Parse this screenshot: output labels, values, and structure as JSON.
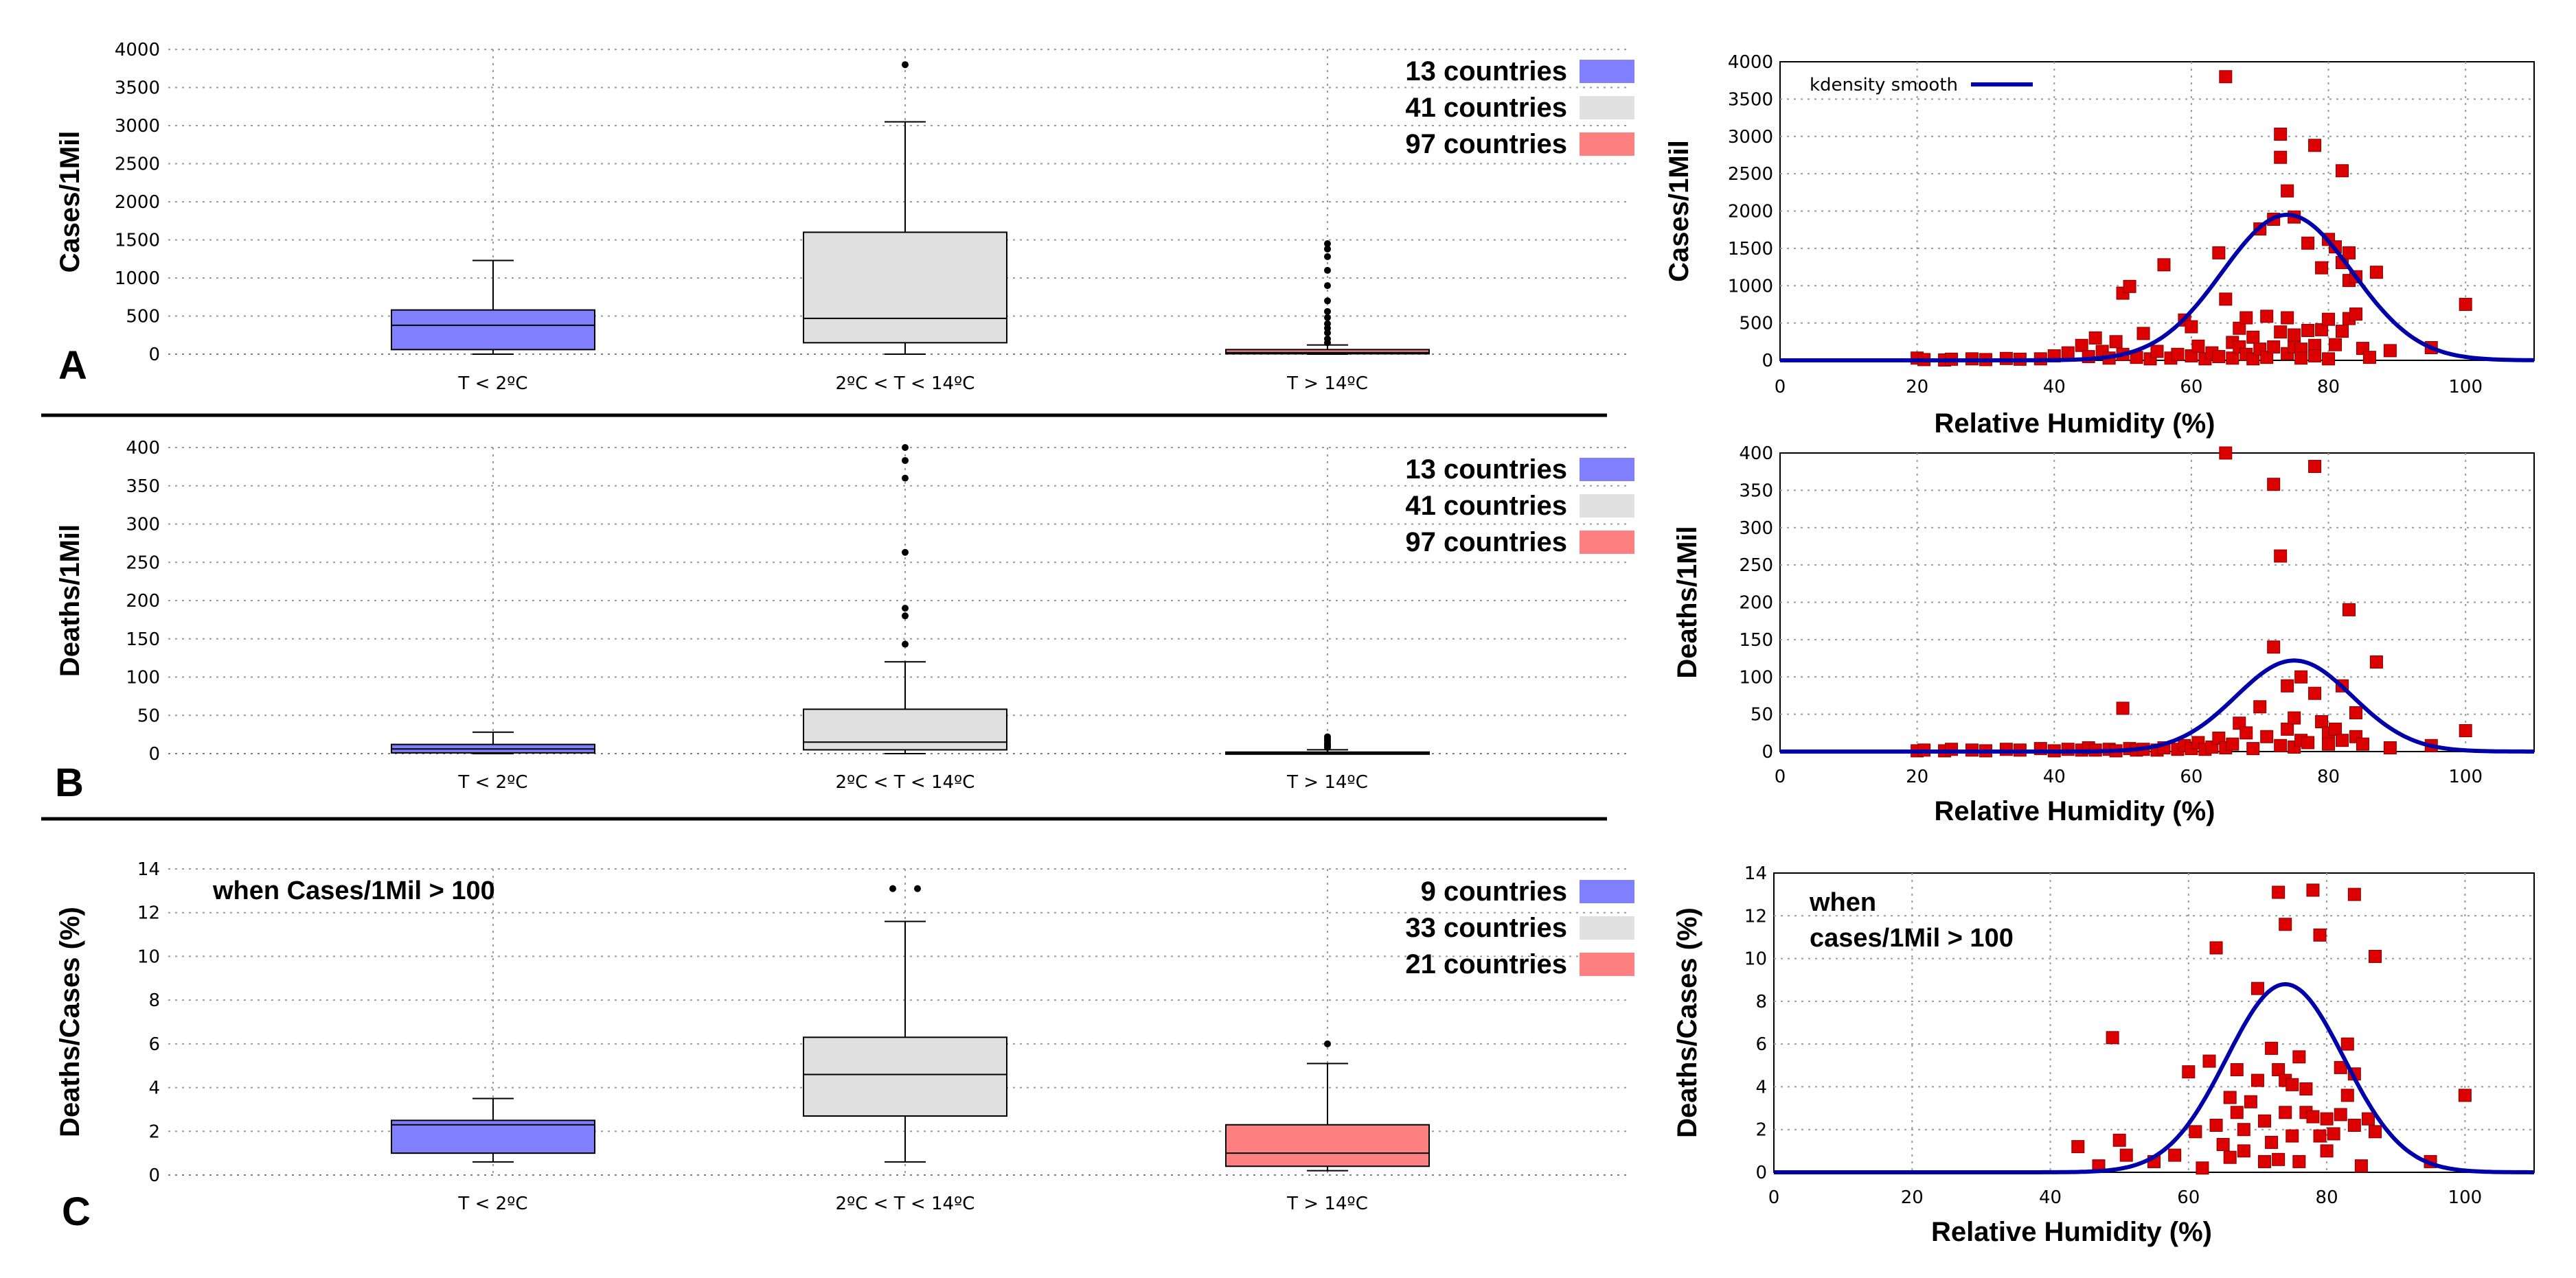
{
  "panel_labels": [
    "A",
    "B",
    "C"
  ],
  "colors": {
    "cold": "#8080ff",
    "mid": "#e0e0e0",
    "warm": "#ff8080",
    "scatter": "#dd0000",
    "kdensity": "#0000aa"
  },
  "chart_data": [
    {
      "type": "box",
      "panel": "A",
      "ylabel": "Cases/1Mil",
      "xlabel": "",
      "ylim": [
        0,
        4000
      ],
      "yticks": [
        0,
        500,
        1000,
        1500,
        2000,
        2500,
        3000,
        3500,
        4000
      ],
      "categories": [
        "T < 2ºC",
        "2ºC < T < 14ºC",
        "T > 14ºC"
      ],
      "legend": [
        "13 countries",
        "41 countries",
        "97 countries"
      ],
      "boxes": [
        {
          "whisker_low": 0,
          "q1": 60,
          "median": 380,
          "q3": 580,
          "whisker_high": 1230,
          "outliers": []
        },
        {
          "whisker_low": 0,
          "q1": 150,
          "median": 470,
          "q3": 1600,
          "whisker_high": 3050,
          "outliers": [
            3800
          ]
        },
        {
          "whisker_low": 0,
          "q1": 5,
          "median": 20,
          "q3": 60,
          "whisker_high": 120,
          "outliers": [
            150,
            200,
            280,
            340,
            400,
            480,
            560,
            700,
            900,
            1100,
            1280,
            1380,
            1450
          ]
        }
      ]
    },
    {
      "type": "box",
      "panel": "B",
      "ylabel": "Deaths/1Mil",
      "xlabel": "",
      "ylim": [
        0,
        400
      ],
      "yticks": [
        0,
        50,
        100,
        150,
        200,
        250,
        300,
        350,
        400
      ],
      "categories": [
        "T < 2ºC",
        "2ºC < T < 14ºC",
        "T > 14ºC"
      ],
      "legend": [
        "13 countries",
        "41 countries",
        "97 countries"
      ],
      "boxes": [
        {
          "whisker_low": 0,
          "q1": 1,
          "median": 6,
          "q3": 12,
          "whisker_high": 28,
          "outliers": []
        },
        {
          "whisker_low": 0,
          "q1": 5,
          "median": 15,
          "q3": 58,
          "whisker_high": 120,
          "outliers": [
            143,
            180,
            190,
            263,
            360,
            383,
            400
          ]
        },
        {
          "whisker_low": 0,
          "q1": 0,
          "median": 1,
          "q3": 2,
          "whisker_high": 5,
          "outliers": [
            8,
            10,
            12,
            14,
            17,
            19,
            22
          ]
        }
      ]
    },
    {
      "type": "box",
      "panel": "C",
      "ylabel": "Deaths/Cases (%)",
      "xlabel": "",
      "ylim": [
        0,
        14
      ],
      "yticks": [
        0,
        2,
        4,
        6,
        8,
        10,
        12,
        14
      ],
      "categories": [
        "T < 2ºC",
        "2ºC < T < 14ºC",
        "T > 14ºC"
      ],
      "legend": [
        "9 countries",
        "33 countries",
        "21 countries"
      ],
      "note": "when Cases/1Mil > 100",
      "boxes": [
        {
          "whisker_low": 0.6,
          "q1": 1.0,
          "median": 2.3,
          "q3": 2.5,
          "whisker_high": 3.5,
          "outliers": []
        },
        {
          "whisker_low": 0.6,
          "q1": 2.7,
          "median": 4.6,
          "q3": 6.3,
          "whisker_high": 11.6,
          "outliers": [
            13.1,
            13.1
          ]
        },
        {
          "whisker_low": 0.2,
          "q1": 0.4,
          "median": 1.0,
          "q3": 2.3,
          "whisker_high": 5.1,
          "outliers": [
            6.0
          ]
        }
      ]
    },
    {
      "type": "scatter",
      "panel": "A-right",
      "ylabel": "Cases/1Mil",
      "xlabel": "Relative Humidity (%)",
      "xlim": [
        0,
        110
      ],
      "ylim": [
        0,
        4000
      ],
      "xticks": [
        0,
        20,
        40,
        60,
        80,
        100
      ],
      "yticks": [
        0,
        500,
        1000,
        1500,
        2000,
        2500,
        3000,
        3500,
        4000
      ],
      "legend": [
        "kdensity smooth"
      ],
      "curve": {
        "peak_x": 74,
        "peak_y": 1950,
        "sigma": 9.5
      },
      "points": [
        [
          20,
          30
        ],
        [
          21,
          10
        ],
        [
          24,
          5
        ],
        [
          25,
          15
        ],
        [
          28,
          20
        ],
        [
          30,
          10
        ],
        [
          33,
          25
        ],
        [
          35,
          15
        ],
        [
          38,
          20
        ],
        [
          40,
          60
        ],
        [
          42,
          100
        ],
        [
          44,
          200
        ],
        [
          45,
          50
        ],
        [
          46,
          300
        ],
        [
          47,
          120
        ],
        [
          48,
          30
        ],
        [
          49,
          250
        ],
        [
          50,
          80
        ],
        [
          50,
          900
        ],
        [
          51,
          990
        ],
        [
          52,
          40
        ],
        [
          53,
          360
        ],
        [
          54,
          20
        ],
        [
          55,
          120
        ],
        [
          56,
          1280
        ],
        [
          57,
          30
        ],
        [
          58,
          80
        ],
        [
          59,
          540
        ],
        [
          60,
          450
        ],
        [
          60,
          60
        ],
        [
          61,
          190
        ],
        [
          62,
          20
        ],
        [
          63,
          100
        ],
        [
          64,
          1440
        ],
        [
          64,
          50
        ],
        [
          65,
          3800
        ],
        [
          65,
          820
        ],
        [
          66,
          240
        ],
        [
          66,
          30
        ],
        [
          67,
          180
        ],
        [
          67,
          430
        ],
        [
          68,
          570
        ],
        [
          68,
          80
        ],
        [
          69,
          310
        ],
        [
          69,
          20
        ],
        [
          70,
          150
        ],
        [
          70,
          1760
        ],
        [
          71,
          590
        ],
        [
          71,
          40
        ],
        [
          72,
          180
        ],
        [
          72,
          1890
        ],
        [
          73,
          3030
        ],
        [
          73,
          2720
        ],
        [
          73,
          380
        ],
        [
          74,
          2270
        ],
        [
          74,
          570
        ],
        [
          74,
          90
        ],
        [
          75,
          1920
        ],
        [
          75,
          180
        ],
        [
          75,
          340
        ],
        [
          76,
          150
        ],
        [
          76,
          30
        ],
        [
          77,
          1570
        ],
        [
          77,
          400
        ],
        [
          78,
          2880
        ],
        [
          78,
          200
        ],
        [
          78,
          60
        ],
        [
          79,
          1240
        ],
        [
          79,
          410
        ],
        [
          80,
          1620
        ],
        [
          80,
          550
        ],
        [
          80,
          20
        ],
        [
          81,
          1520
        ],
        [
          81,
          210
        ],
        [
          82,
          2540
        ],
        [
          82,
          1310
        ],
        [
          82,
          390
        ],
        [
          83,
          1440
        ],
        [
          83,
          1070
        ],
        [
          83,
          560
        ],
        [
          84,
          1120
        ],
        [
          84,
          620
        ],
        [
          85,
          160
        ],
        [
          86,
          40
        ],
        [
          87,
          1180
        ],
        [
          89,
          130
        ],
        [
          95,
          170
        ],
        [
          100,
          750
        ]
      ]
    },
    {
      "type": "scatter",
      "panel": "B-right",
      "ylabel": "Deaths/1Mil",
      "xlabel": "Relative Humidity (%)",
      "xlim": [
        0,
        110
      ],
      "ylim": [
        0,
        400
      ],
      "xticks": [
        0,
        20,
        40,
        60,
        80,
        100
      ],
      "yticks": [
        0,
        50,
        100,
        150,
        200,
        250,
        300,
        350,
        400
      ],
      "curve": {
        "peak_x": 75,
        "peak_y": 122,
        "sigma": 8.5
      },
      "points": [
        [
          20,
          1
        ],
        [
          21,
          2
        ],
        [
          24,
          1
        ],
        [
          25,
          3
        ],
        [
          28,
          2
        ],
        [
          30,
          1
        ],
        [
          33,
          3
        ],
        [
          35,
          2
        ],
        [
          38,
          4
        ],
        [
          40,
          1
        ],
        [
          42,
          3
        ],
        [
          44,
          2
        ],
        [
          45,
          5
        ],
        [
          46,
          2
        ],
        [
          48,
          3
        ],
        [
          49,
          1
        ],
        [
          50,
          58
        ],
        [
          51,
          4
        ],
        [
          52,
          2
        ],
        [
          53,
          3
        ],
        [
          55,
          2
        ],
        [
          56,
          5
        ],
        [
          58,
          3
        ],
        [
          59,
          8
        ],
        [
          60,
          4
        ],
        [
          61,
          12
        ],
        [
          62,
          3
        ],
        [
          63,
          6
        ],
        [
          64,
          18
        ],
        [
          65,
          400
        ],
        [
          65,
          5
        ],
        [
          66,
          10
        ],
        [
          67,
          38
        ],
        [
          68,
          25
        ],
        [
          69,
          4
        ],
        [
          70,
          60
        ],
        [
          71,
          20
        ],
        [
          72,
          140
        ],
        [
          72,
          358
        ],
        [
          73,
          262
        ],
        [
          73,
          8
        ],
        [
          74,
          88
        ],
        [
          74,
          30
        ],
        [
          75,
          45
        ],
        [
          75,
          6
        ],
        [
          76,
          100
        ],
        [
          76,
          15
        ],
        [
          77,
          12
        ],
        [
          78,
          382
        ],
        [
          78,
          78
        ],
        [
          79,
          40
        ],
        [
          80,
          25
        ],
        [
          80,
          10
        ],
        [
          81,
          30
        ],
        [
          82,
          88
        ],
        [
          82,
          15
        ],
        [
          83,
          190
        ],
        [
          84,
          52
        ],
        [
          84,
          20
        ],
        [
          85,
          10
        ],
        [
          87,
          120
        ],
        [
          89,
          5
        ],
        [
          95,
          8
        ],
        [
          100,
          28
        ]
      ]
    },
    {
      "type": "scatter",
      "panel": "C-right",
      "ylabel": "Deaths/Cases (%)",
      "xlabel": "Relative Humidity (%)",
      "xlim": [
        0,
        110
      ],
      "ylim": [
        0,
        14
      ],
      "xticks": [
        0,
        20,
        40,
        60,
        80,
        100
      ],
      "yticks": [
        0,
        2,
        4,
        6,
        8,
        10,
        12,
        14
      ],
      "note": [
        "when",
        "cases/1Mil > 100"
      ],
      "curve": {
        "peak_x": 74,
        "peak_y": 8.8,
        "sigma": 8.5
      },
      "points": [
        [
          44,
          1.2
        ],
        [
          47,
          0.3
        ],
        [
          49,
          6.3
        ],
        [
          50,
          1.5
        ],
        [
          51,
          0.8
        ],
        [
          55,
          0.5
        ],
        [
          58,
          0.8
        ],
        [
          60,
          4.7
        ],
        [
          61,
          1.9
        ],
        [
          62,
          0.2
        ],
        [
          63,
          5.2
        ],
        [
          64,
          10.5
        ],
        [
          64,
          2.2
        ],
        [
          65,
          1.3
        ],
        [
          66,
          3.5
        ],
        [
          66,
          0.7
        ],
        [
          67,
          4.8
        ],
        [
          67,
          2.8
        ],
        [
          68,
          1.0
        ],
        [
          68,
          2.0
        ],
        [
          69,
          3.3
        ],
        [
          70,
          8.6
        ],
        [
          70,
          4.3
        ],
        [
          71,
          2.4
        ],
        [
          71,
          0.5
        ],
        [
          72,
          5.8
        ],
        [
          72,
          1.4
        ],
        [
          73,
          13.1
        ],
        [
          73,
          4.8
        ],
        [
          73,
          0.6
        ],
        [
          74,
          11.6
        ],
        [
          74,
          4.3
        ],
        [
          74,
          2.8
        ],
        [
          75,
          4.1
        ],
        [
          75,
          1.7
        ],
        [
          76,
          5.4
        ],
        [
          76,
          0.5
        ],
        [
          77,
          2.8
        ],
        [
          77,
          3.9
        ],
        [
          78,
          13.2
        ],
        [
          78,
          2.6
        ],
        [
          79,
          11.1
        ],
        [
          79,
          1.7
        ],
        [
          80,
          2.5
        ],
        [
          80,
          1.0
        ],
        [
          81,
          1.8
        ],
        [
          82,
          4.9
        ],
        [
          82,
          2.7
        ],
        [
          83,
          6.0
        ],
        [
          83,
          3.6
        ],
        [
          84,
          13.0
        ],
        [
          84,
          4.6
        ],
        [
          84,
          2.2
        ],
        [
          85,
          0.3
        ],
        [
          86,
          2.5
        ],
        [
          87,
          1.9
        ],
        [
          87,
          10.1
        ],
        [
          95,
          0.5
        ],
        [
          100,
          3.6
        ]
      ]
    }
  ]
}
